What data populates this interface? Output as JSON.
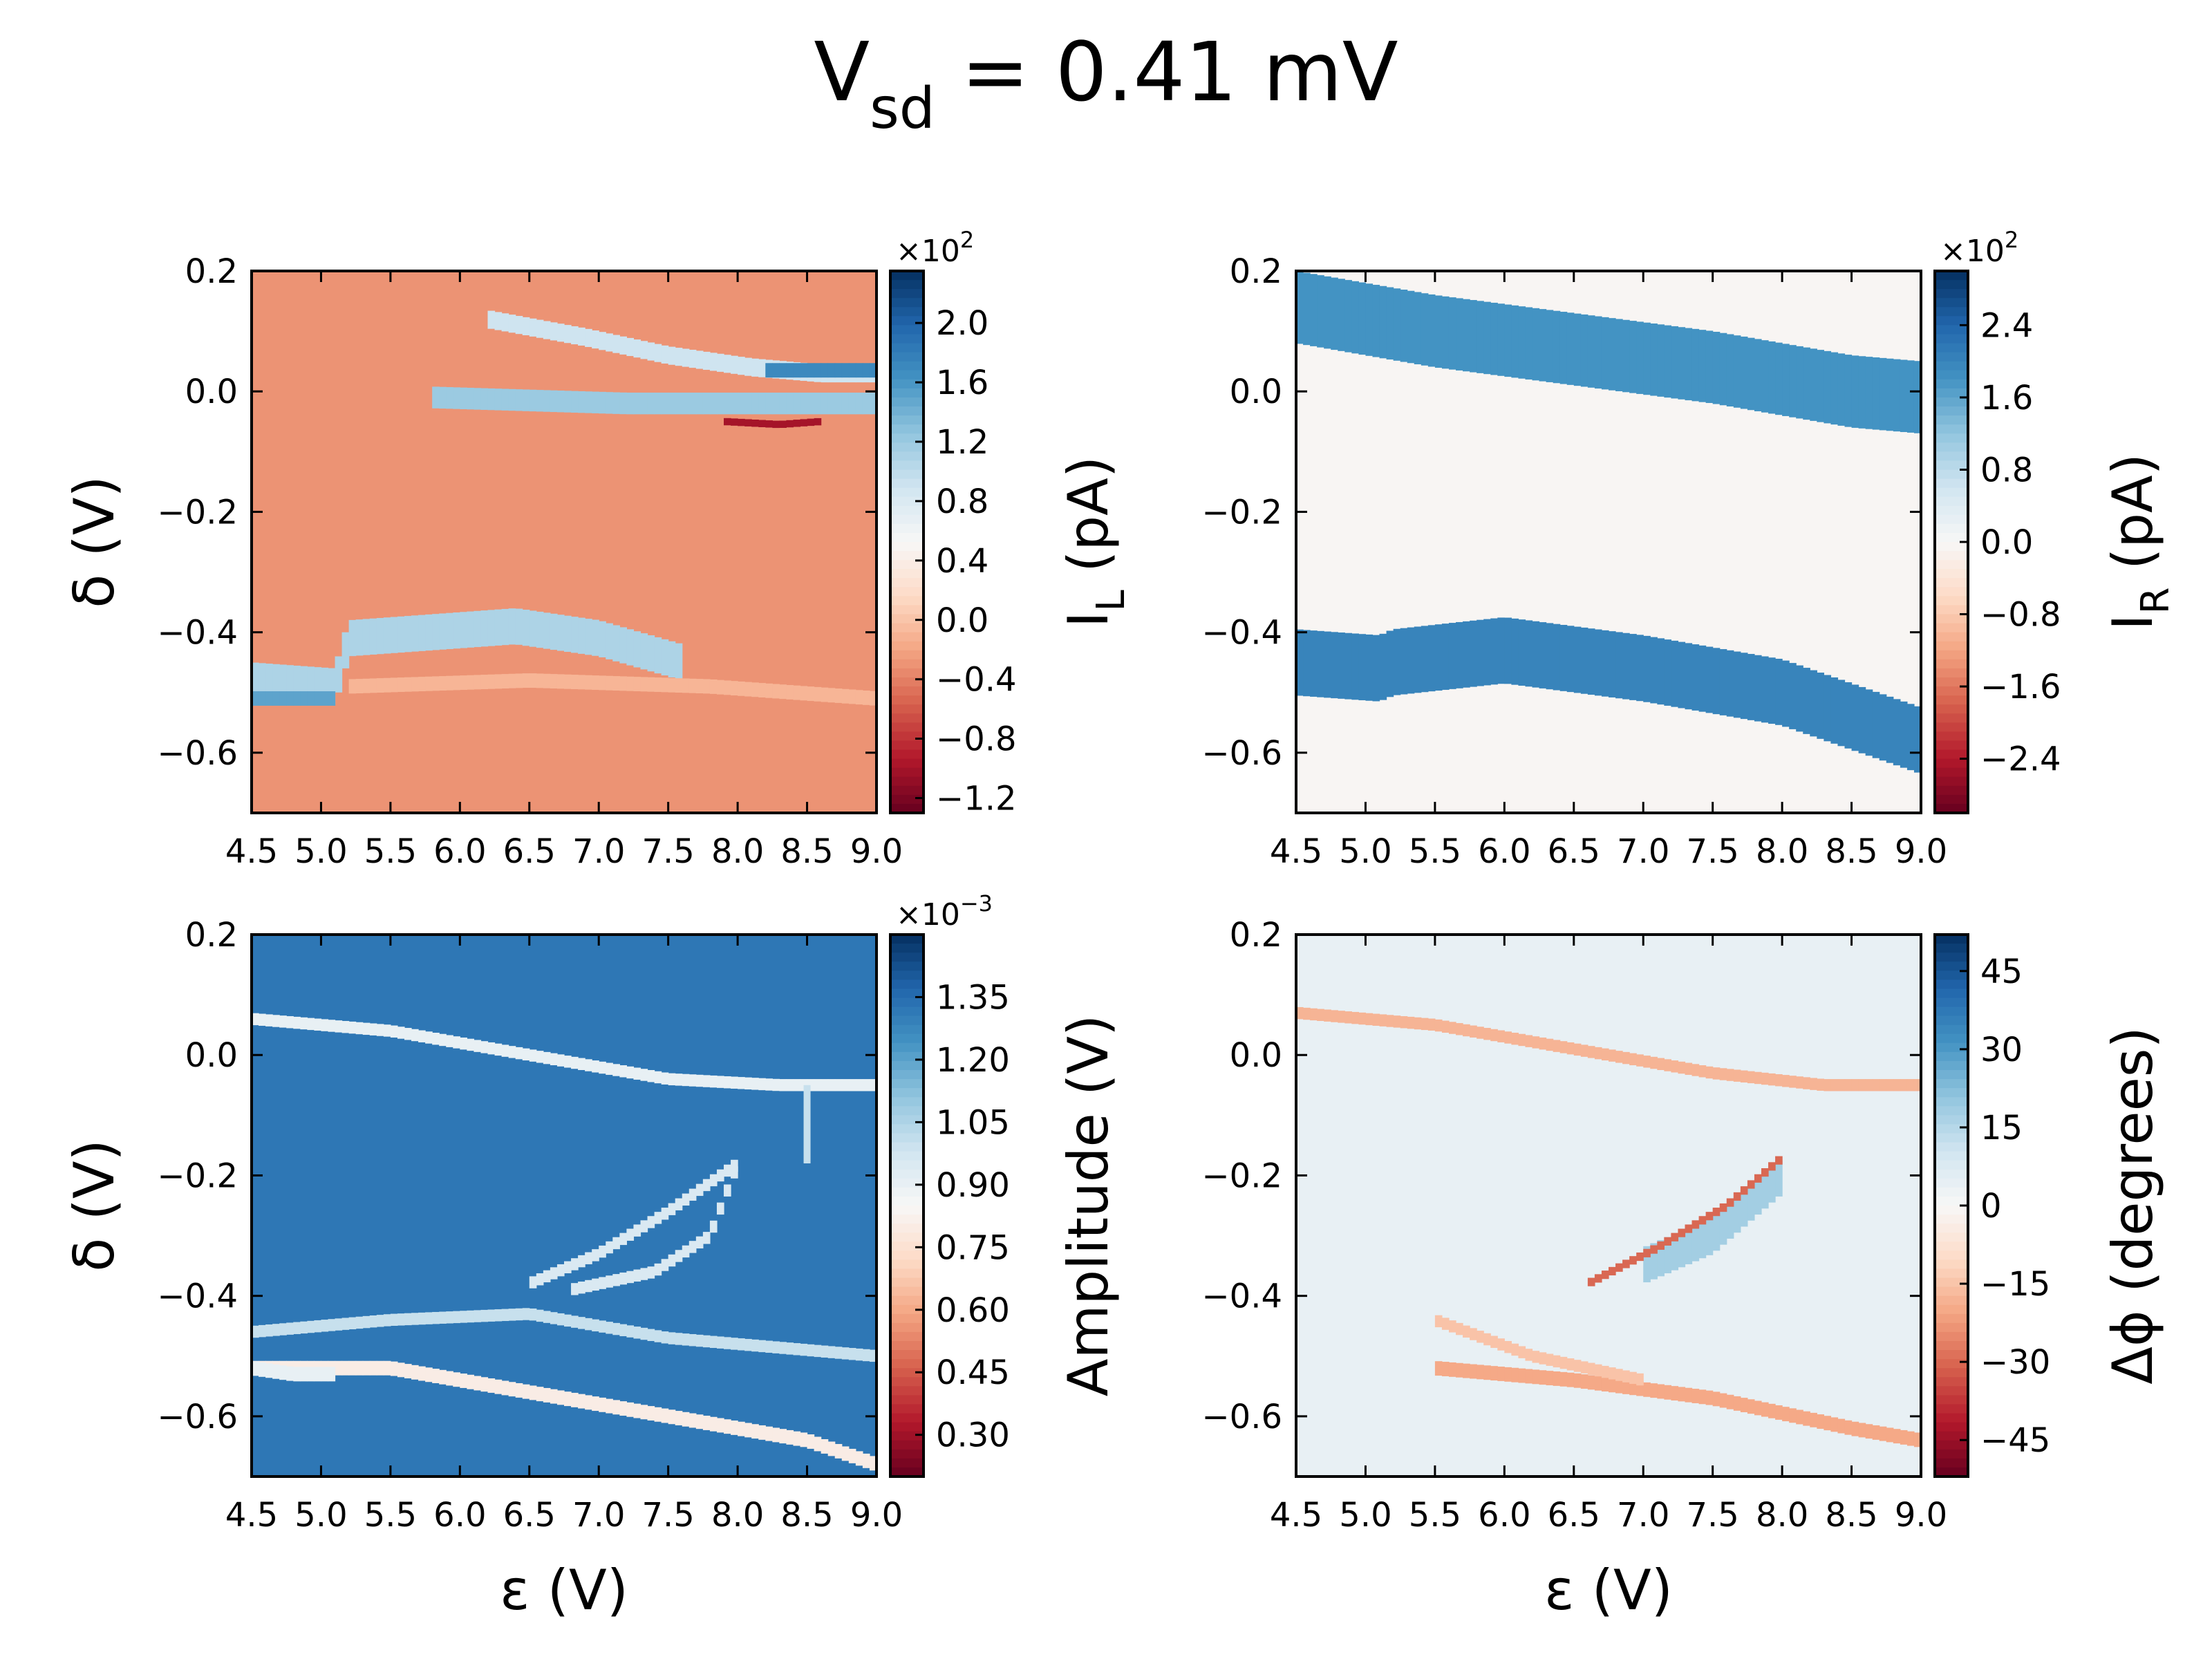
{
  "figure": {
    "title_main": "V",
    "title_sub": "sd",
    "title_rest": " = 0.41 mV"
  },
  "colors": {
    "rdbu": [
      "#67001f",
      "#b2182b",
      "#d6604d",
      "#f4a582",
      "#fddbc7",
      "#f7f7f7",
      "#d1e5f0",
      "#92c5de",
      "#4393c3",
      "#2166ac",
      "#053061"
    ]
  },
  "chart_data": [
    {
      "type": "heatmap",
      "panel": "top-left",
      "x_ticks": [
        "4.5",
        "5.0",
        "5.5",
        "6.0",
        "6.5",
        "7.0",
        "7.5",
        "8.0",
        "8.5",
        "9.0"
      ],
      "y_ticks": [
        "0.2",
        "0.0",
        "−0.2",
        "−0.4",
        "−0.6"
      ],
      "xlim": [
        4.5,
        9.0
      ],
      "ylim": [
        -0.7,
        0.2
      ],
      "xlabel": "",
      "ylabel": "δ (V)",
      "colorbar": {
        "label_main": "I",
        "label_sub": "L",
        "label_rest": " (pA)",
        "multiplier_base": "×10",
        "multiplier_exp": "2",
        "range": [
          -1.3,
          2.35
        ],
        "ticks": [
          "2.0",
          "1.6",
          "1.2",
          "0.8",
          "0.4",
          "0.0",
          "−0.4",
          "−0.8",
          "−1.2"
        ],
        "tick_values": [
          2.0,
          1.6,
          1.2,
          0.8,
          0.4,
          0.0,
          -0.4,
          -0.8,
          -1.2
        ]
      },
      "background_value": -0.3,
      "features": [
        {
          "name": "upper-fork-lower",
          "value": 1.2,
          "x": [
            5.8,
            6.5,
            7.2,
            7.9,
            8.5,
            9.0
          ],
          "y": [
            -0.01,
            -0.015,
            -0.02,
            -0.02,
            -0.02,
            -0.02
          ],
          "thickness": 0.018
        },
        {
          "name": "upper-fork-upper",
          "value": 0.9,
          "x": [
            6.2,
            6.9,
            7.5,
            8.1,
            8.6,
            9.0
          ],
          "y": [
            0.12,
            0.09,
            0.06,
            0.04,
            0.03,
            0.03
          ],
          "thickness": 0.015
        },
        {
          "name": "upper-fork-tip",
          "value": 1.7,
          "x": [
            8.2,
            8.6,
            9.0
          ],
          "y": [
            0.035,
            0.035,
            0.035
          ],
          "thickness": 0.012
        },
        {
          "name": "upper-fork-red",
          "value": -1.0,
          "x": [
            7.9,
            8.3,
            8.6
          ],
          "y": [
            -0.05,
            -0.055,
            -0.05
          ],
          "thickness": 0.006
        },
        {
          "name": "lower-band",
          "value": 1.1,
          "x": [
            4.5,
            5.1,
            5.2,
            5.8,
            6.4,
            7.0,
            7.6
          ],
          "y": [
            -0.48,
            -0.49,
            -0.41,
            -0.4,
            -0.39,
            -0.41,
            -0.45
          ],
          "thickness": 0.03
        },
        {
          "name": "lower-band-dark",
          "value": 1.5,
          "x": [
            4.5,
            4.8,
            5.1
          ],
          "y": [
            -0.51,
            -0.51,
            -0.51
          ],
          "thickness": 0.012
        },
        {
          "name": "lower-shadow",
          "value": -0.1,
          "x": [
            5.2,
            6.5,
            7.8,
            9.0
          ],
          "y": [
            -0.49,
            -0.48,
            -0.49,
            -0.51
          ],
          "thickness": 0.012
        }
      ]
    },
    {
      "type": "heatmap",
      "panel": "top-right",
      "x_ticks": [
        "4.5",
        "5.0",
        "5.5",
        "6.0",
        "6.5",
        "7.0",
        "7.5",
        "8.0",
        "8.5",
        "9.0"
      ],
      "y_ticks": [
        "0.2",
        "0.0",
        "−0.2",
        "−0.4",
        "−0.6"
      ],
      "xlim": [
        4.5,
        9.0
      ],
      "ylim": [
        -0.7,
        0.2
      ],
      "xlabel": "",
      "ylabel": "",
      "colorbar": {
        "label_main": "I",
        "label_sub": "R",
        "label_rest": " (pA)",
        "multiplier_base": "×10",
        "multiplier_exp": "2",
        "range": [
          -3.0,
          3.0
        ],
        "ticks": [
          "2.4",
          "1.6",
          "0.8",
          "0.0",
          "−0.8",
          "−1.6",
          "−2.4"
        ],
        "tick_values": [
          2.4,
          1.6,
          0.8,
          0.0,
          -0.8,
          -1.6,
          -2.4
        ]
      },
      "background_value": -0.05,
      "features": [
        {
          "name": "upper-band",
          "value": 1.8,
          "x": [
            4.5,
            5.5,
            6.5,
            7.5,
            8.5,
            9.0
          ],
          "y": [
            0.14,
            0.1,
            0.07,
            0.04,
            0.0,
            -0.01
          ],
          "thickness": 0.06
        },
        {
          "name": "lower-band",
          "value": 2.0,
          "x": [
            4.5,
            5.1,
            5.2,
            6.0,
            7.0,
            8.0,
            9.0
          ],
          "y": [
            -0.45,
            -0.46,
            -0.45,
            -0.43,
            -0.46,
            -0.5,
            -0.58
          ],
          "thickness": 0.055
        }
      ]
    },
    {
      "type": "heatmap",
      "panel": "bottom-left",
      "x_ticks": [
        "4.5",
        "5.0",
        "5.5",
        "6.0",
        "6.5",
        "7.0",
        "7.5",
        "8.0",
        "8.5",
        "9.0"
      ],
      "y_ticks": [
        "0.2",
        "0.0",
        "−0.2",
        "−0.4",
        "−0.6"
      ],
      "xlim": [
        4.5,
        9.0
      ],
      "ylim": [
        -0.7,
        0.2
      ],
      "xlabel": "ε (V)",
      "ylabel": "δ (V)",
      "colorbar": {
        "label_main": "Amplitude (V)",
        "label_sub": "",
        "label_rest": "",
        "multiplier_base": "×10",
        "multiplier_exp": "−3",
        "range": [
          0.2,
          1.5
        ],
        "ticks": [
          "1.35",
          "1.20",
          "1.05",
          "0.90",
          "0.75",
          "0.60",
          "0.45",
          "0.30"
        ],
        "tick_values": [
          1.35,
          1.2,
          1.05,
          0.9,
          0.75,
          0.6,
          0.45,
          0.3
        ]
      },
      "background_value": 1.32,
      "features": [
        {
          "name": "upper-line",
          "value": 0.9,
          "x": [
            4.5,
            5.5,
            6.5,
            7.5,
            8.3,
            9.0
          ],
          "y": [
            0.06,
            0.04,
            0.0,
            -0.04,
            -0.05,
            -0.05
          ],
          "thickness": 0.01
        },
        {
          "name": "lower-line",
          "value": 0.8,
          "x": [
            4.5,
            5.5,
            6.5,
            7.5,
            8.5,
            9.0
          ],
          "y": [
            -0.52,
            -0.52,
            -0.56,
            -0.6,
            -0.64,
            -0.68
          ],
          "thickness": 0.012
        },
        {
          "name": "arc-upper",
          "value": 0.95,
          "x": [
            6.5,
            7.0,
            7.5,
            8.0
          ],
          "y": [
            -0.38,
            -0.33,
            -0.26,
            -0.18
          ],
          "thickness": 0.01
        },
        {
          "name": "arc-lower",
          "value": 0.95,
          "x": [
            6.8,
            7.4,
            7.8,
            8.0
          ],
          "y": [
            -0.39,
            -0.36,
            -0.3,
            -0.18
          ],
          "thickness": 0.01
        },
        {
          "name": "middle-line",
          "value": 1.0,
          "x": [
            4.5,
            5.5,
            6.5,
            7.5,
            9.0
          ],
          "y": [
            -0.46,
            -0.44,
            -0.43,
            -0.47,
            -0.5
          ],
          "thickness": 0.01
        },
        {
          "name": "left-blob",
          "value": 0.9,
          "x": [
            4.5,
            4.8,
            5.1
          ],
          "y": [
            -0.52,
            -0.53,
            -0.53
          ],
          "thickness": 0.012
        },
        {
          "name": "vertical-line",
          "value": 1.0,
          "x": [
            8.5,
            8.5
          ],
          "y": [
            -0.05,
            -0.18
          ],
          "thickness": 0.006
        }
      ]
    },
    {
      "type": "heatmap",
      "panel": "bottom-right",
      "x_ticks": [
        "4.5",
        "5.0",
        "5.5",
        "6.0",
        "6.5",
        "7.0",
        "7.5",
        "8.0",
        "8.5",
        "9.0"
      ],
      "y_ticks": [
        "0.2",
        "0.0",
        "−0.2",
        "−0.4",
        "−0.6"
      ],
      "xlim": [
        4.5,
        9.0
      ],
      "ylim": [
        -0.7,
        0.2
      ],
      "xlabel": "ε (V)",
      "ylabel": "",
      "colorbar": {
        "label_main": "Δϕ (degrees)",
        "label_sub": "",
        "label_rest": "",
        "multiplier_base": "",
        "multiplier_exp": "",
        "range": [
          -52,
          52
        ],
        "ticks": [
          "45",
          "30",
          "15",
          "0",
          "−15",
          "−30",
          "−45"
        ],
        "tick_values": [
          45,
          30,
          15,
          0,
          -15,
          -30,
          -45
        ]
      },
      "background_value": 4,
      "features": [
        {
          "name": "upper-line",
          "value": -18,
          "x": [
            4.5,
            5.5,
            6.5,
            7.5,
            8.3,
            9.0
          ],
          "y": [
            0.07,
            0.05,
            0.01,
            -0.03,
            -0.05,
            -0.05
          ],
          "thickness": 0.01
        },
        {
          "name": "lower-line",
          "value": -20,
          "x": [
            5.5,
            6.5,
            7.5,
            8.5,
            9.0
          ],
          "y": [
            -0.52,
            -0.54,
            -0.57,
            -0.62,
            -0.64
          ],
          "thickness": 0.012
        },
        {
          "name": "arc-fill",
          "value": 18,
          "x": [
            7.0,
            7.5,
            7.8,
            8.0
          ],
          "y": [
            -0.35,
            -0.3,
            -0.24,
            -0.2
          ],
          "thickness": 0.03
        },
        {
          "name": "arc-edge",
          "value": -30,
          "x": [
            6.6,
            7.1,
            7.6,
            8.0
          ],
          "y": [
            -0.38,
            -0.32,
            -0.25,
            -0.17
          ],
          "thickness": 0.007
        },
        {
          "name": "crossing",
          "value": -15,
          "x": [
            5.5,
            6.2,
            7.0
          ],
          "y": [
            -0.44,
            -0.5,
            -0.54
          ],
          "thickness": 0.01
        }
      ]
    }
  ]
}
